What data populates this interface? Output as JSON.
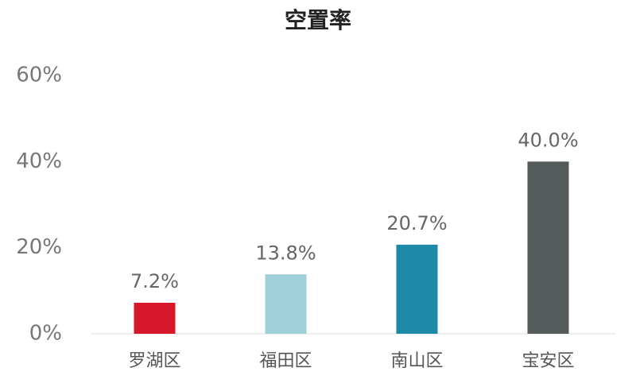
{
  "chart_data": {
    "type": "bar",
    "title": "空置率",
    "categories": [
      "罗湖区",
      "福田区",
      "南山区",
      "宝安区"
    ],
    "values": [
      7.2,
      13.8,
      20.7,
      40.0
    ],
    "value_labels": [
      "7.2%",
      "13.8%",
      "20.7%",
      "40.0%"
    ],
    "colors": [
      "#d7182a",
      "#9fcfd9",
      "#1f8aa8",
      "#555a5a"
    ],
    "ylim": [
      0,
      60
    ],
    "yticks": [
      {
        "value": 0,
        "label": "0%"
      },
      {
        "value": 20,
        "label": "20%"
      },
      {
        "value": 40,
        "label": "40%"
      },
      {
        "value": 60,
        "label": "60%"
      }
    ],
    "grid": false
  }
}
